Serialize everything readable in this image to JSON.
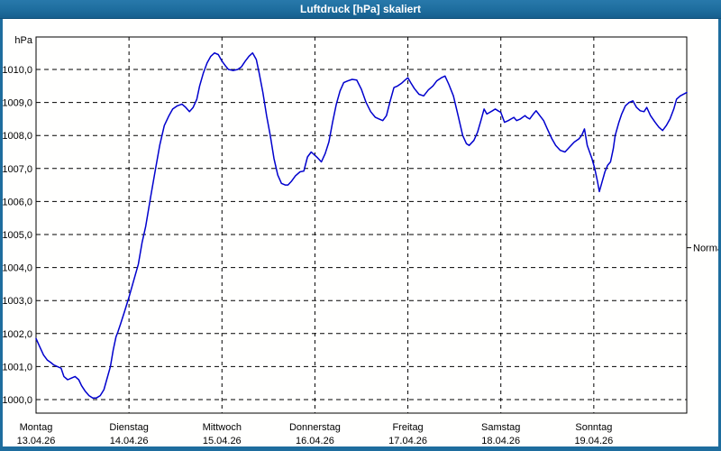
{
  "window": {
    "title": "Luftdruck [hPa] skaliert",
    "frame_color": "#1e6d9e",
    "background": "#fffffe"
  },
  "chart_data": {
    "type": "line",
    "title": "Luftdruck [hPa] skaliert",
    "unit_label": "hPa",
    "line_color": "#0000cd",
    "grid_color": "#000000",
    "text_color": "#000000",
    "grid": true,
    "legend_position": "none",
    "ylim": [
      999.6,
      1011.0
    ],
    "xlabel": "",
    "ylabel": "hPa",
    "y_ticks": [
      {
        "value": 1000,
        "label": "1000,0"
      },
      {
        "value": 1001,
        "label": "1001,0"
      },
      {
        "value": 1002,
        "label": "1002,0"
      },
      {
        "value": 1003,
        "label": "1003,0"
      },
      {
        "value": 1004,
        "label": "1004,0"
      },
      {
        "value": 1005,
        "label": "1005,0"
      },
      {
        "value": 1006,
        "label": "1006,0"
      },
      {
        "value": 1007,
        "label": "1007,0"
      },
      {
        "value": 1008,
        "label": "1008,0"
      },
      {
        "value": 1009,
        "label": "1009,0"
      },
      {
        "value": 1010,
        "label": "1010,0"
      }
    ],
    "x_days": [
      {
        "name": "Montag",
        "date": "13.04.26"
      },
      {
        "name": "Dienstag",
        "date": "14.04.26"
      },
      {
        "name": "Mittwoch",
        "date": "15.04.26"
      },
      {
        "name": "Donnerstag",
        "date": "16.04.26"
      },
      {
        "name": "Freitag",
        "date": "17.04.26"
      },
      {
        "name": "Samstag",
        "date": "18.04.26"
      },
      {
        "name": "Sonntag",
        "date": "19.04.26"
      }
    ],
    "annotation": {
      "label": "Normal",
      "value": 1004.6
    },
    "series": [
      {
        "name": "Luftdruck",
        "points": [
          [
            0.0,
            1001.85
          ],
          [
            0.04,
            1001.6
          ],
          [
            0.08,
            1001.35
          ],
          [
            0.12,
            1001.2
          ],
          [
            0.16,
            1001.12
          ],
          [
            0.19,
            1001.05
          ],
          [
            0.23,
            1001.0
          ],
          [
            0.27,
            1000.95
          ],
          [
            0.3,
            1000.7
          ],
          [
            0.34,
            1000.6
          ],
          [
            0.38,
            1000.65
          ],
          [
            0.42,
            1000.7
          ],
          [
            0.46,
            1000.6
          ],
          [
            0.49,
            1000.42
          ],
          [
            0.53,
            1000.25
          ],
          [
            0.57,
            1000.12
          ],
          [
            0.61,
            1000.05
          ],
          [
            0.65,
            1000.05
          ],
          [
            0.69,
            1000.12
          ],
          [
            0.73,
            1000.3
          ],
          [
            0.76,
            1000.6
          ],
          [
            0.8,
            1001.0
          ],
          [
            0.83,
            1001.5
          ],
          [
            0.86,
            1001.9
          ],
          [
            0.88,
            1002.05
          ],
          [
            0.91,
            1002.3
          ],
          [
            0.95,
            1002.65
          ],
          [
            1.0,
            1003.1
          ],
          [
            1.05,
            1003.6
          ],
          [
            1.1,
            1004.1
          ],
          [
            1.14,
            1004.75
          ],
          [
            1.18,
            1005.25
          ],
          [
            1.23,
            1006.1
          ],
          [
            1.28,
            1006.9
          ],
          [
            1.33,
            1007.7
          ],
          [
            1.38,
            1008.3
          ],
          [
            1.43,
            1008.6
          ],
          [
            1.47,
            1008.8
          ],
          [
            1.52,
            1008.9
          ],
          [
            1.57,
            1008.95
          ],
          [
            1.61,
            1008.85
          ],
          [
            1.65,
            1008.72
          ],
          [
            1.69,
            1008.85
          ],
          [
            1.73,
            1009.1
          ],
          [
            1.76,
            1009.5
          ],
          [
            1.8,
            1009.9
          ],
          [
            1.84,
            1010.2
          ],
          [
            1.88,
            1010.4
          ],
          [
            1.92,
            1010.5
          ],
          [
            1.96,
            1010.45
          ],
          [
            2.0,
            1010.25
          ],
          [
            2.04,
            1010.1
          ],
          [
            2.07,
            1010.0
          ],
          [
            2.12,
            1009.97
          ],
          [
            2.17,
            1010.0
          ],
          [
            2.21,
            1010.08
          ],
          [
            2.25,
            1010.25
          ],
          [
            2.29,
            1010.4
          ],
          [
            2.33,
            1010.5
          ],
          [
            2.37,
            1010.3
          ],
          [
            2.4,
            1009.9
          ],
          [
            2.44,
            1009.3
          ],
          [
            2.48,
            1008.6
          ],
          [
            2.52,
            1008.0
          ],
          [
            2.56,
            1007.3
          ],
          [
            2.6,
            1006.8
          ],
          [
            2.64,
            1006.55
          ],
          [
            2.68,
            1006.5
          ],
          [
            2.71,
            1006.5
          ],
          [
            2.75,
            1006.62
          ],
          [
            2.79,
            1006.78
          ],
          [
            2.84,
            1006.9
          ],
          [
            2.88,
            1006.92
          ],
          [
            2.92,
            1007.35
          ],
          [
            2.96,
            1007.5
          ],
          [
            3.0,
            1007.4
          ],
          [
            3.03,
            1007.32
          ],
          [
            3.07,
            1007.2
          ],
          [
            3.11,
            1007.45
          ],
          [
            3.15,
            1007.8
          ],
          [
            3.19,
            1008.4
          ],
          [
            3.23,
            1008.95
          ],
          [
            3.27,
            1009.35
          ],
          [
            3.31,
            1009.6
          ],
          [
            3.35,
            1009.65
          ],
          [
            3.4,
            1009.7
          ],
          [
            3.45,
            1009.68
          ],
          [
            3.5,
            1009.4
          ],
          [
            3.55,
            1009.0
          ],
          [
            3.6,
            1008.72
          ],
          [
            3.65,
            1008.55
          ],
          [
            3.69,
            1008.5
          ],
          [
            3.73,
            1008.45
          ],
          [
            3.77,
            1008.6
          ],
          [
            3.81,
            1009.05
          ],
          [
            3.85,
            1009.45
          ],
          [
            3.89,
            1009.5
          ],
          [
            3.93,
            1009.58
          ],
          [
            3.97,
            1009.68
          ],
          [
            4.0,
            1009.75
          ],
          [
            4.03,
            1009.6
          ],
          [
            4.07,
            1009.42
          ],
          [
            4.12,
            1009.25
          ],
          [
            4.17,
            1009.2
          ],
          [
            4.22,
            1009.38
          ],
          [
            4.27,
            1009.5
          ],
          [
            4.31,
            1009.65
          ],
          [
            4.36,
            1009.75
          ],
          [
            4.4,
            1009.8
          ],
          [
            4.44,
            1009.55
          ],
          [
            4.49,
            1009.2
          ],
          [
            4.54,
            1008.6
          ],
          [
            4.59,
            1008.0
          ],
          [
            4.63,
            1007.75
          ],
          [
            4.66,
            1007.7
          ],
          [
            4.71,
            1007.85
          ],
          [
            4.75,
            1008.1
          ],
          [
            4.79,
            1008.5
          ],
          [
            4.82,
            1008.8
          ],
          [
            4.85,
            1008.65
          ],
          [
            4.88,
            1008.7
          ],
          [
            4.91,
            1008.75
          ],
          [
            4.94,
            1008.8
          ],
          [
            4.97,
            1008.75
          ],
          [
            5.0,
            1008.7
          ],
          [
            5.04,
            1008.4
          ],
          [
            5.08,
            1008.45
          ],
          [
            5.11,
            1008.5
          ],
          [
            5.14,
            1008.55
          ],
          [
            5.17,
            1008.45
          ],
          [
            5.21,
            1008.5
          ],
          [
            5.26,
            1008.6
          ],
          [
            5.28,
            1008.55
          ],
          [
            5.31,
            1008.5
          ],
          [
            5.35,
            1008.65
          ],
          [
            5.38,
            1008.75
          ],
          [
            5.42,
            1008.6
          ],
          [
            5.46,
            1008.45
          ],
          [
            5.5,
            1008.2
          ],
          [
            5.55,
            1007.9
          ],
          [
            5.59,
            1007.7
          ],
          [
            5.64,
            1007.55
          ],
          [
            5.69,
            1007.5
          ],
          [
            5.74,
            1007.65
          ],
          [
            5.79,
            1007.8
          ],
          [
            5.84,
            1007.9
          ],
          [
            5.87,
            1008.0
          ],
          [
            5.9,
            1008.2
          ],
          [
            5.93,
            1007.7
          ],
          [
            5.98,
            1007.3
          ],
          [
            6.01,
            1007.0
          ],
          [
            6.04,
            1006.6
          ],
          [
            6.06,
            1006.3
          ],
          [
            6.09,
            1006.6
          ],
          [
            6.12,
            1006.9
          ],
          [
            6.15,
            1007.1
          ],
          [
            6.18,
            1007.2
          ],
          [
            6.21,
            1007.6
          ],
          [
            6.23,
            1008.0
          ],
          [
            6.27,
            1008.4
          ],
          [
            6.3,
            1008.65
          ],
          [
            6.34,
            1008.9
          ],
          [
            6.38,
            1009.0
          ],
          [
            6.42,
            1009.05
          ],
          [
            6.46,
            1008.85
          ],
          [
            6.5,
            1008.75
          ],
          [
            6.54,
            1008.72
          ],
          [
            6.57,
            1008.85
          ],
          [
            6.61,
            1008.6
          ],
          [
            6.66,
            1008.4
          ],
          [
            6.7,
            1008.25
          ],
          [
            6.74,
            1008.15
          ],
          [
            6.78,
            1008.3
          ],
          [
            6.82,
            1008.5
          ],
          [
            6.86,
            1008.8
          ],
          [
            6.89,
            1009.1
          ],
          [
            6.93,
            1009.2
          ],
          [
            7.0,
            1009.3
          ]
        ]
      }
    ]
  }
}
